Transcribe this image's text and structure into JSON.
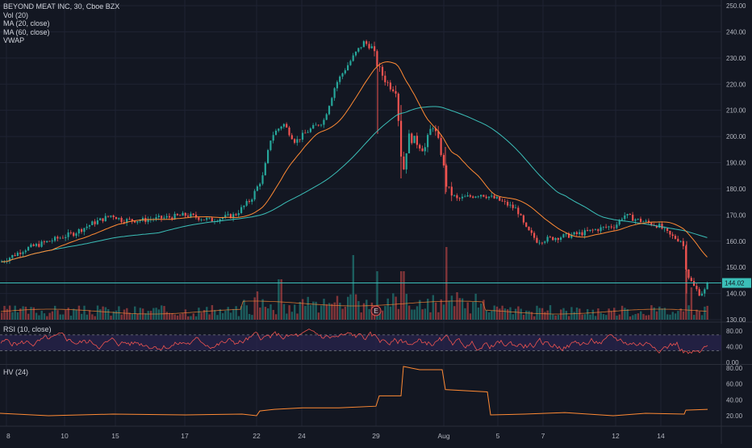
{
  "header": {
    "symbol_title": "BEYOND MEAT INC, 30, Cboe BZX",
    "indicators": [
      "Vol (20)",
      "MA (20, close)",
      "MA (60, close)",
      "VWAP"
    ]
  },
  "rsi_pane": {
    "label": "RSI (10, close)",
    "ticks": [
      "80.00",
      "40.00",
      "0.00"
    ]
  },
  "hv_pane": {
    "label": "HV (24)",
    "ticks": [
      "80.00",
      "60.00",
      "40.00",
      "20.00"
    ]
  },
  "price_axis": {
    "ticks": [
      "250.00",
      "240.00",
      "230.00",
      "220.00",
      "210.00",
      "200.00",
      "190.00",
      "180.00",
      "170.00",
      "160.00",
      "150.00",
      "140.00",
      "130.00"
    ],
    "last_price_label": "144.02"
  },
  "x_axis": {
    "ticks": [
      "8",
      "10",
      "15",
      "17",
      "22",
      "24",
      "29",
      "Aug",
      "5",
      "7",
      "12",
      "14"
    ]
  },
  "earnings_marker": "E",
  "colors": {
    "background": "#131722",
    "up": "#26a69a",
    "down": "#ef5350",
    "ma20": "#ff8a34",
    "ma60": "#3bbfb8",
    "rsi_line": "#f05350",
    "rsi_band": "#2a2550",
    "hv_line": "#ff8a34",
    "grid": "#1f2333"
  },
  "chart_data": {
    "type": "candlestick",
    "title": "BEYOND MEAT INC, 30, Cboe BZX",
    "ylim": [
      125,
      252
    ],
    "last_price": 144.02,
    "x": [
      "8",
      "10",
      "15",
      "17",
      "22",
      "24",
      "29",
      "Aug",
      "5",
      "7",
      "12",
      "14"
    ],
    "close_path": [
      {
        "x": "8",
        "y": 152
      },
      {
        "x": "10",
        "y": 162
      },
      {
        "x": "15",
        "y": 170
      },
      {
        "x": "17",
        "y": 169
      },
      {
        "x": "22",
        "y": 178
      },
      {
        "x": "24",
        "y": 202
      },
      {
        "x": "29",
        "y": 226
      },
      {
        "x": "Aug",
        "y": 180
      },
      {
        "x": "5",
        "y": 176
      },
      {
        "x": "7",
        "y": 162
      },
      {
        "x": "12",
        "y": 168
      },
      {
        "x": "14",
        "y": 144
      }
    ],
    "series": [
      {
        "name": "MA (20, close)"
      },
      {
        "name": "MA (60, close)"
      },
      {
        "name": "RSI (10, close)"
      },
      {
        "name": "HV (24)"
      }
    ],
    "rsi_ylim": [
      0,
      80
    ],
    "hv_ylim": [
      0,
      80
    ],
    "grid": true
  }
}
